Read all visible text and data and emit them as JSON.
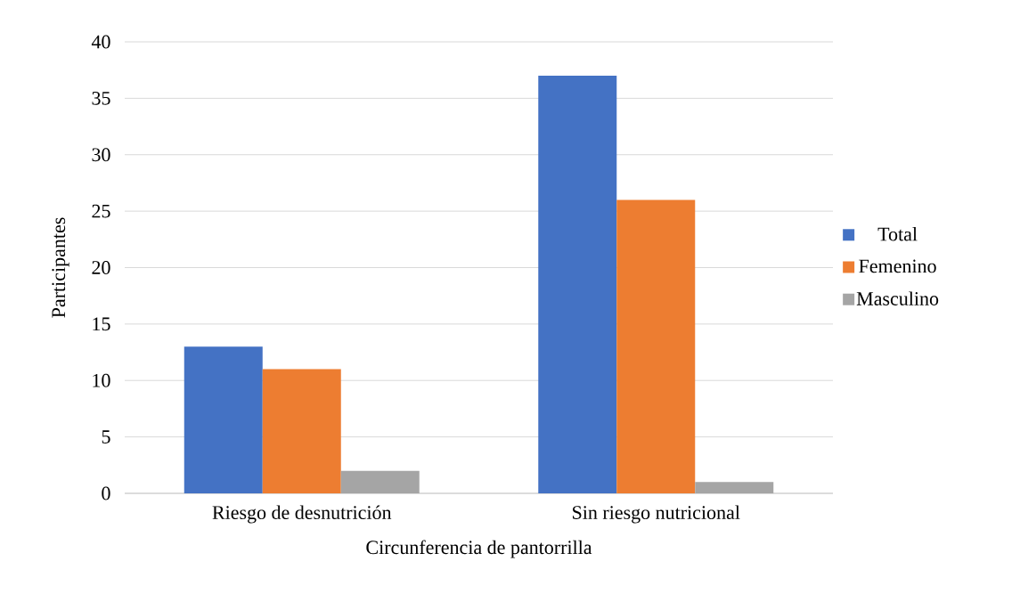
{
  "chart_data": {
    "type": "bar",
    "xlabel": "Circunferencia de pantorrilla",
    "ylabel": "Participantes",
    "categories": [
      "Riesgo de desnutrición",
      "Sin riesgo nutricional"
    ],
    "series": [
      {
        "name": "Total",
        "color": "#4472c4",
        "values": [
          13,
          37
        ]
      },
      {
        "name": "Femenino",
        "color": "#ed7d31",
        "values": [
          11,
          26
        ]
      },
      {
        "name": "Masculino",
        "color": "#a5a5a5",
        "values": [
          2,
          1
        ]
      }
    ],
    "ylim": [
      0,
      40
    ],
    "yticks": [
      0,
      5,
      10,
      15,
      20,
      25,
      30,
      35,
      40
    ],
    "grid": "y",
    "legend": "right"
  }
}
